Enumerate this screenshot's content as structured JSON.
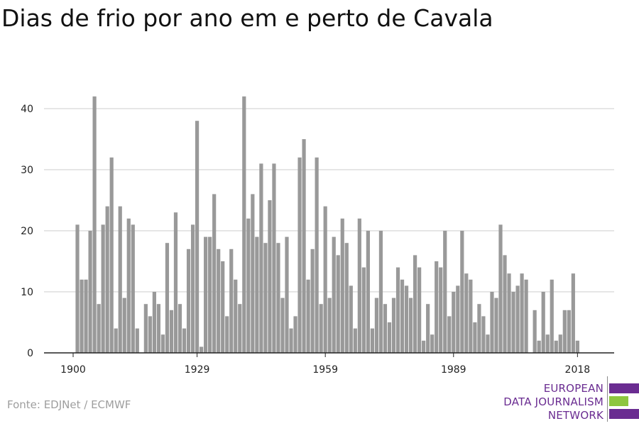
{
  "title": "Dias de frio por ano em e perto de Cavala",
  "source": "Fonte: EDJNet / ECMWF",
  "logo": {
    "lines": [
      "EUROPEAN",
      "DATA JOURNALISM",
      "NETWORK"
    ],
    "colors": {
      "purple": "#6a2c91",
      "green": "#8dc63f"
    }
  },
  "colors": {
    "bar": "#999999",
    "grid": "#dddddd",
    "axis": "#222222",
    "text": "#222222"
  },
  "chart_data": {
    "type": "bar",
    "title": "Dias de frio por ano em e perto de Cavala",
    "xlabel": "",
    "ylabel": "",
    "ylim": [
      0,
      42
    ],
    "yticks": [
      0,
      10,
      20,
      30,
      40
    ],
    "xticks": [
      1900,
      1929,
      1959,
      1989,
      2018
    ],
    "grid": true,
    "x": [
      1901,
      1902,
      1903,
      1904,
      1905,
      1906,
      1907,
      1908,
      1909,
      1910,
      1911,
      1912,
      1913,
      1914,
      1915,
      1916,
      1917,
      1918,
      1919,
      1920,
      1921,
      1922,
      1923,
      1924,
      1925,
      1926,
      1927,
      1928,
      1929,
      1930,
      1931,
      1932,
      1933,
      1934,
      1935,
      1936,
      1937,
      1938,
      1939,
      1940,
      1941,
      1942,
      1943,
      1944,
      1945,
      1946,
      1947,
      1948,
      1949,
      1950,
      1951,
      1952,
      1953,
      1954,
      1955,
      1956,
      1957,
      1958,
      1959,
      1960,
      1961,
      1962,
      1963,
      1964,
      1965,
      1966,
      1967,
      1968,
      1969,
      1970,
      1971,
      1972,
      1973,
      1974,
      1975,
      1976,
      1977,
      1978,
      1979,
      1980,
      1981,
      1982,
      1983,
      1984,
      1985,
      1986,
      1987,
      1988,
      1989,
      1990,
      1991,
      1992,
      1993,
      1994,
      1995,
      1996,
      1997,
      1998,
      1999,
      2000,
      2001,
      2002,
      2003,
      2004,
      2005,
      2006,
      2007,
      2008,
      2009,
      2010,
      2011,
      2012,
      2013,
      2014,
      2015,
      2016,
      2017,
      2018,
      2019
    ],
    "values": [
      21,
      12,
      12,
      20,
      42,
      8,
      21,
      24,
      32,
      4,
      24,
      9,
      22,
      21,
      4,
      0,
      8,
      6,
      10,
      8,
      3,
      18,
      7,
      23,
      8,
      4,
      17,
      21,
      38,
      1,
      19,
      19,
      26,
      17,
      15,
      6,
      17,
      12,
      8,
      42,
      22,
      26,
      19,
      31,
      18,
      25,
      31,
      18,
      9,
      19,
      4,
      6,
      32,
      35,
      12,
      17,
      32,
      8,
      24,
      9,
      19,
      16,
      22,
      18,
      11,
      4,
      22,
      14,
      20,
      4,
      9,
      20,
      8,
      5,
      9,
      14,
      12,
      11,
      9,
      16,
      14,
      2,
      8,
      3,
      15,
      14,
      20,
      6,
      10,
      11,
      20,
      13,
      12,
      5,
      8,
      6,
      3,
      10,
      9,
      21,
      16,
      13,
      10,
      11,
      13,
      12,
      0,
      7,
      2,
      10,
      3,
      12,
      2,
      3,
      7,
      7,
      13,
      2,
      0
    ]
  }
}
